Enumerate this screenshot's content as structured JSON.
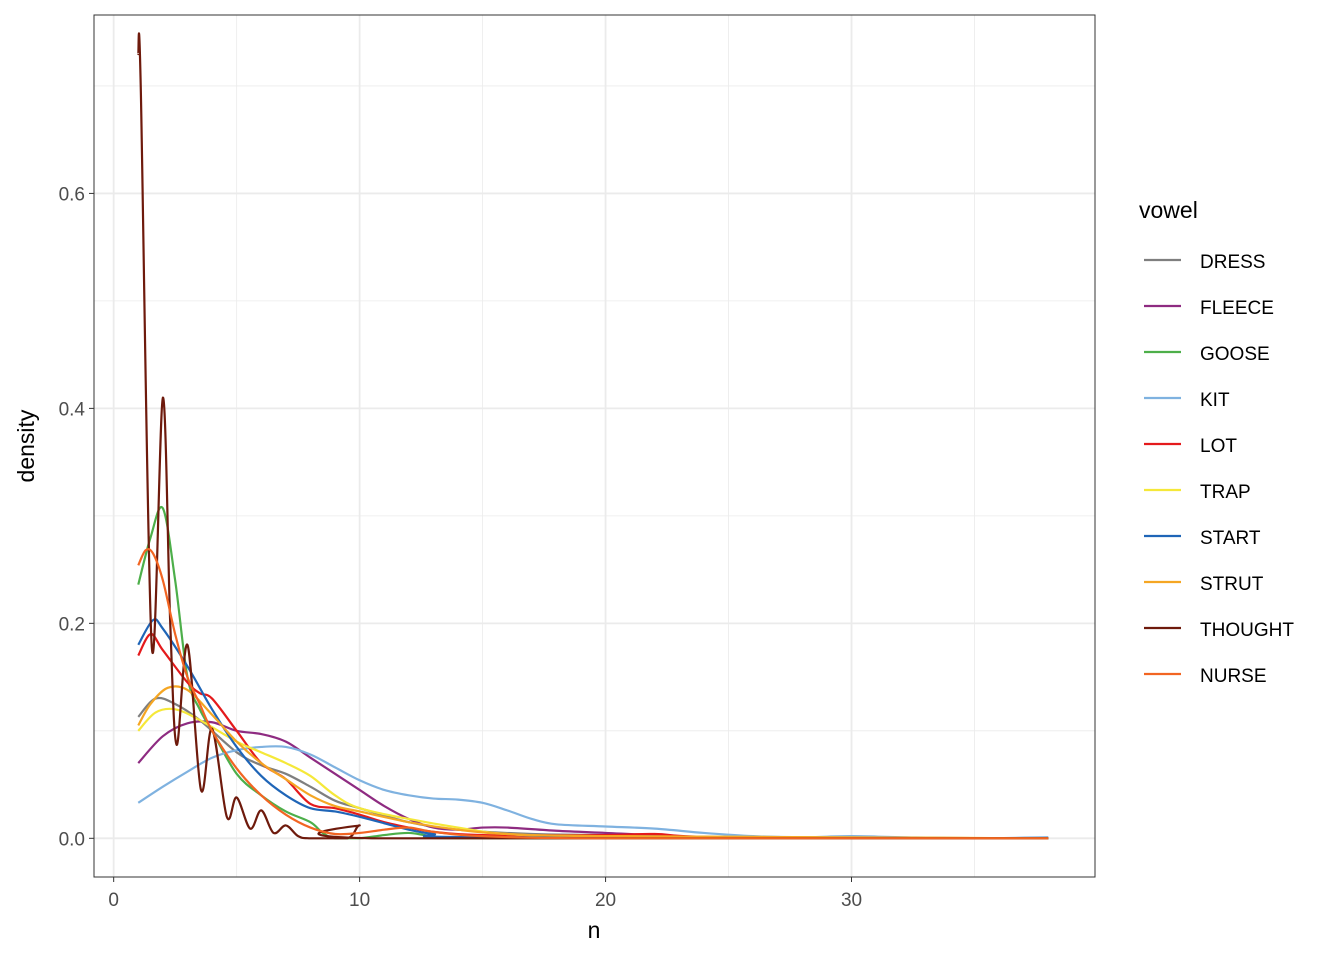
{
  "chart_data": {
    "type": "line",
    "title": "",
    "xlabel": "n",
    "ylabel": "density",
    "xlim": [
      -0.8,
      39.9
    ],
    "ylim": [
      -0.036,
      0.766
    ],
    "x_ticks": [
      0,
      10,
      20,
      30
    ],
    "x_tick_labels": [
      "0",
      "10",
      "20",
      "30"
    ],
    "y_ticks": [
      0,
      0.2,
      0.4,
      0.6
    ],
    "y_tick_labels": [
      "0.0",
      "0.2",
      "0.4",
      "0.6"
    ],
    "grid": true,
    "legend": {
      "title": "vowel",
      "placement": "right"
    },
    "series": [
      {
        "name": "DRESS",
        "color": "#7F7F7F",
        "points": [
          [
            1,
            0.113
          ],
          [
            1.7,
            0.13
          ],
          [
            2.5,
            0.125
          ],
          [
            3.5,
            0.11
          ],
          [
            5,
            0.08
          ],
          [
            6,
            0.068
          ],
          [
            7,
            0.06
          ],
          [
            8,
            0.048
          ],
          [
            9,
            0.035
          ],
          [
            10,
            0.028
          ],
          [
            12,
            0.015
          ],
          [
            14,
            0.008
          ],
          [
            17,
            0.004
          ],
          [
            20,
            0.003
          ],
          [
            25,
            0.001
          ],
          [
            38,
            0
          ]
        ]
      },
      {
        "name": "FLEECE",
        "color": "#8E2B81",
        "points": [
          [
            1,
            0.07
          ],
          [
            2,
            0.095
          ],
          [
            3,
            0.107
          ],
          [
            4,
            0.108
          ],
          [
            5,
            0.1
          ],
          [
            6,
            0.097
          ],
          [
            7,
            0.09
          ],
          [
            8,
            0.075
          ],
          [
            9,
            0.06
          ],
          [
            10,
            0.045
          ],
          [
            11,
            0.03
          ],
          [
            12,
            0.018
          ],
          [
            13,
            0.01
          ],
          [
            14,
            0.008
          ],
          [
            15,
            0.01
          ],
          [
            16,
            0.01
          ],
          [
            18,
            0.007
          ],
          [
            20,
            0.005
          ],
          [
            22,
            0.003
          ],
          [
            25,
            0.001
          ],
          [
            38,
            0
          ]
        ]
      },
      {
        "name": "GOOSE",
        "color": "#4DAF4A",
        "points": [
          [
            1,
            0.236
          ],
          [
            1.5,
            0.28
          ],
          [
            2,
            0.307
          ],
          [
            2.5,
            0.24
          ],
          [
            3,
            0.15
          ],
          [
            3.5,
            0.12
          ],
          [
            4,
            0.1
          ],
          [
            5,
            0.06
          ],
          [
            6,
            0.04
          ],
          [
            7,
            0.025
          ],
          [
            8,
            0.015
          ],
          [
            8.5,
            0.005
          ],
          [
            9,
            0
          ],
          [
            10,
            0
          ],
          [
            11,
            0.003
          ],
          [
            12,
            0.005
          ],
          [
            13,
            0.002
          ],
          [
            15,
            0
          ],
          [
            38,
            0
          ]
        ]
      },
      {
        "name": "KIT",
        "color": "#7FB2E0",
        "points": [
          [
            1,
            0.033
          ],
          [
            2,
            0.048
          ],
          [
            3,
            0.062
          ],
          [
            4,
            0.075
          ],
          [
            5,
            0.082
          ],
          [
            6,
            0.085
          ],
          [
            7,
            0.085
          ],
          [
            8,
            0.078
          ],
          [
            9,
            0.066
          ],
          [
            10,
            0.054
          ],
          [
            11,
            0.045
          ],
          [
            12,
            0.04
          ],
          [
            13,
            0.037
          ],
          [
            14,
            0.036
          ],
          [
            15,
            0.033
          ],
          [
            16,
            0.026
          ],
          [
            17,
            0.018
          ],
          [
            18,
            0.013
          ],
          [
            20,
            0.011
          ],
          [
            22,
            0.009
          ],
          [
            24,
            0.005
          ],
          [
            26,
            0.002
          ],
          [
            28,
            0.001
          ],
          [
            30,
            0.002
          ],
          [
            32,
            0.001
          ],
          [
            35,
            0
          ],
          [
            38,
            0.001
          ]
        ]
      },
      {
        "name": "LOT",
        "color": "#E41A1C",
        "points": [
          [
            1,
            0.17
          ],
          [
            1.5,
            0.19
          ],
          [
            2,
            0.175
          ],
          [
            3,
            0.145
          ],
          [
            3.5,
            0.135
          ],
          [
            4,
            0.13
          ],
          [
            5,
            0.1
          ],
          [
            6,
            0.07
          ],
          [
            7,
            0.055
          ],
          [
            8,
            0.032
          ],
          [
            9,
            0.028
          ],
          [
            10,
            0.022
          ],
          [
            11,
            0.015
          ],
          [
            12,
            0.01
          ],
          [
            13,
            0.006
          ],
          [
            15,
            0.003
          ],
          [
            20,
            0.003
          ],
          [
            22,
            0.004
          ],
          [
            25,
            0.001
          ],
          [
            38,
            0
          ]
        ]
      },
      {
        "name": "TRAP",
        "color": "#F5E839",
        "points": [
          [
            1,
            0.1
          ],
          [
            1.7,
            0.117
          ],
          [
            2.5,
            0.12
          ],
          [
            3.5,
            0.11
          ],
          [
            5,
            0.09
          ],
          [
            6,
            0.08
          ],
          [
            7,
            0.07
          ],
          [
            8,
            0.058
          ],
          [
            9,
            0.04
          ],
          [
            10,
            0.028
          ],
          [
            12,
            0.018
          ],
          [
            14,
            0.01
          ],
          [
            16,
            0.004
          ],
          [
            20,
            0.002
          ],
          [
            38,
            0
          ]
        ]
      },
      {
        "name": "START",
        "color": "#1F65B7",
        "points": [
          [
            1,
            0.18
          ],
          [
            1.6,
            0.203
          ],
          [
            2,
            0.195
          ],
          [
            3,
            0.16
          ],
          [
            4,
            0.12
          ],
          [
            5,
            0.085
          ],
          [
            6,
            0.058
          ],
          [
            7,
            0.04
          ],
          [
            8,
            0.028
          ],
          [
            9,
            0.025
          ],
          [
            10,
            0.02
          ],
          [
            11,
            0.014
          ],
          [
            12,
            0.008
          ],
          [
            13,
            0.004
          ],
          [
            15,
            0.001
          ],
          [
            38,
            0
          ]
        ]
      },
      {
        "name": "STRUT",
        "color": "#F5A623",
        "points": [
          [
            1,
            0.105
          ],
          [
            1.5,
            0.125
          ],
          [
            2.2,
            0.14
          ],
          [
            3,
            0.138
          ],
          [
            4,
            0.115
          ],
          [
            5,
            0.09
          ],
          [
            6,
            0.07
          ],
          [
            7,
            0.055
          ],
          [
            8,
            0.04
          ],
          [
            9,
            0.03
          ],
          [
            10,
            0.025
          ],
          [
            12,
            0.015
          ],
          [
            14,
            0.008
          ],
          [
            16,
            0.004
          ],
          [
            20,
            0.002
          ],
          [
            38,
            0
          ]
        ]
      },
      {
        "name": "THOUGHT",
        "color": "#6E1A0C",
        "points": [
          [
            1,
            0.73
          ],
          [
            1.1,
            0.7
          ],
          [
            1.55,
            0.178
          ],
          [
            2,
            0.41
          ],
          [
            2.3,
            0.2
          ],
          [
            2.56,
            0.087
          ],
          [
            3,
            0.18
          ],
          [
            3.55,
            0.045
          ],
          [
            4,
            0.102
          ],
          [
            4.6,
            0.02
          ],
          [
            5,
            0.038
          ],
          [
            5.55,
            0.009
          ],
          [
            6,
            0.026
          ],
          [
            6.5,
            0.005
          ],
          [
            7,
            0.012
          ],
          [
            7.5,
            0.002
          ],
          [
            8,
            0
          ],
          [
            9.5,
            0
          ],
          [
            10,
            0.012
          ],
          [
            10.5,
            0
          ],
          [
            38,
            0
          ]
        ]
      },
      {
        "name": "NURSE",
        "color": "#F26522",
        "points": [
          [
            1,
            0.254
          ],
          [
            1.3,
            0.268
          ],
          [
            1.6,
            0.265
          ],
          [
            2,
            0.24
          ],
          [
            2.5,
            0.19
          ],
          [
            3,
            0.15
          ],
          [
            3.5,
            0.125
          ],
          [
            4,
            0.1
          ],
          [
            5,
            0.065
          ],
          [
            6,
            0.04
          ],
          [
            7,
            0.022
          ],
          [
            8,
            0.01
          ],
          [
            9,
            0.004
          ],
          [
            10,
            0.005
          ],
          [
            11,
            0.008
          ],
          [
            12,
            0.01
          ],
          [
            13,
            0.006
          ],
          [
            15,
            0.002
          ],
          [
            20,
            0
          ],
          [
            38,
            0
          ]
        ]
      }
    ]
  }
}
